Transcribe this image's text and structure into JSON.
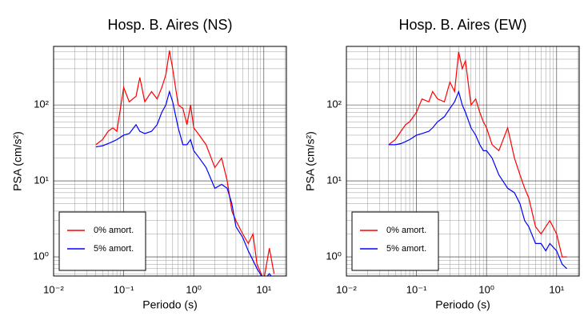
{
  "chart_data": [
    {
      "type": "line",
      "title": "Hosp. B. Aires (NS)",
      "xlabel": "Periodo (s)",
      "ylabel": "PSA (cm/s²)",
      "xscale": "log",
      "yscale": "log",
      "xlim": [
        0.01,
        21
      ],
      "ylim": [
        0.56,
        590
      ],
      "xticks": [
        {
          "value": 0.01,
          "label": "10⁻²"
        },
        {
          "value": 0.1,
          "label": "10⁻¹"
        },
        {
          "value": 1,
          "label": "10⁰"
        },
        {
          "value": 10,
          "label": "10¹"
        }
      ],
      "yticks": [
        {
          "value": 1,
          "label": "10⁰"
        },
        {
          "value": 10,
          "label": "10¹"
        },
        {
          "value": 100,
          "label": "10²"
        }
      ],
      "grid": true,
      "minor_grid": true,
      "legend": "lower left",
      "x": [
        0.04,
        0.05,
        0.06,
        0.07,
        0.08,
        0.1,
        0.12,
        0.15,
        0.17,
        0.2,
        0.25,
        0.3,
        0.35,
        0.4,
        0.45,
        0.5,
        0.6,
        0.7,
        0.8,
        0.9,
        1.0,
        1.2,
        1.5,
        2.0,
        2.5,
        3.0,
        3.5,
        4.0,
        5,
        6,
        7,
        8,
        10,
        12,
        14
      ],
      "series": [
        {
          "name": "0% amort.",
          "color": "#ff0000",
          "values": [
            30,
            35,
            45,
            50,
            45,
            170,
            110,
            130,
            230,
            110,
            150,
            120,
            170,
            250,
            520,
            300,
            100,
            90,
            55,
            100,
            50,
            40,
            30,
            15,
            20,
            10,
            4,
            3,
            2,
            1.5,
            2,
            0.8,
            0.5,
            1.3,
            0.6
          ]
        },
        {
          "name": "5% amort.",
          "color": "#0000ff",
          "values": [
            28,
            29,
            31,
            33,
            35,
            40,
            42,
            55,
            45,
            42,
            45,
            55,
            80,
            100,
            150,
            110,
            50,
            30,
            30,
            35,
            25,
            20,
            15,
            8,
            9,
            8,
            5,
            2.5,
            1.8,
            1.2,
            0.9,
            0.7,
            0.5,
            0.6,
            0.5
          ]
        }
      ]
    },
    {
      "type": "line",
      "title": "Hosp. B. Aires (EW)",
      "xlabel": "Periodo (s)",
      "ylabel": "PSA (cm/s²)",
      "xscale": "log",
      "yscale": "log",
      "xlim": [
        0.01,
        21
      ],
      "ylim": [
        0.56,
        590
      ],
      "xticks": [
        {
          "value": 0.01,
          "label": "10⁻²"
        },
        {
          "value": 0.1,
          "label": "10⁻¹"
        },
        {
          "value": 1,
          "label": "10⁰"
        },
        {
          "value": 10,
          "label": "10¹"
        }
      ],
      "yticks": [
        {
          "value": 1,
          "label": "10⁰"
        },
        {
          "value": 10,
          "label": "10¹"
        },
        {
          "value": 100,
          "label": "10²"
        }
      ],
      "grid": true,
      "minor_grid": true,
      "legend": "lower left",
      "x": [
        0.04,
        0.05,
        0.06,
        0.07,
        0.08,
        0.1,
        0.12,
        0.15,
        0.17,
        0.2,
        0.25,
        0.3,
        0.35,
        0.4,
        0.45,
        0.5,
        0.6,
        0.7,
        0.8,
        0.9,
        1.0,
        1.2,
        1.5,
        2.0,
        2.5,
        3.0,
        3.5,
        4.0,
        5,
        6,
        7,
        8,
        10,
        12,
        14
      ],
      "series": [
        {
          "name": "0% amort.",
          "color": "#ff0000",
          "values": [
            30,
            35,
            45,
            55,
            60,
            80,
            120,
            110,
            150,
            120,
            110,
            200,
            150,
            500,
            300,
            380,
            100,
            120,
            80,
            60,
            50,
            30,
            25,
            50,
            20,
            12,
            8,
            6,
            2.5,
            2,
            2.5,
            3,
            2,
            1,
            1
          ]
        },
        {
          "name": "5% amort.",
          "color": "#0000ff",
          "values": [
            30,
            30,
            31,
            33,
            35,
            40,
            42,
            45,
            50,
            60,
            70,
            90,
            110,
            150,
            100,
            80,
            50,
            40,
            30,
            25,
            25,
            20,
            12,
            8,
            7,
            5,
            3,
            2.5,
            1.5,
            1.5,
            1.2,
            1.5,
            1.2,
            0.8,
            0.7
          ]
        }
      ]
    }
  ]
}
